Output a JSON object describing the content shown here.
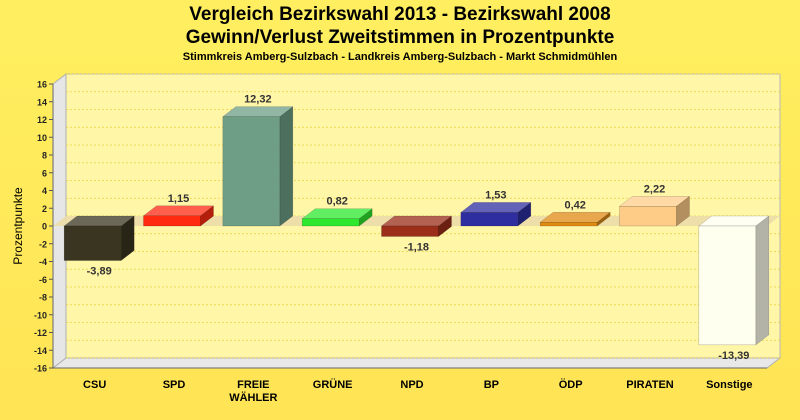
{
  "chart_data": {
    "type": "bar",
    "title": "Vergleich Bezirkswahl 2013 - Bezirkswahl 2008",
    "subtitle_line2": "Gewinn/Verlust Zweitstimmen in Prozentpunkte",
    "caption": "Stimmkreis Amberg-Sulzbach - Landkreis Amberg-Sulzbach - Markt Schmidmühlen",
    "ylabel": "Prozentpunkte",
    "xlabel": "",
    "ylim": [
      -16,
      16
    ],
    "ytick_step": 2,
    "grid": true,
    "categories": [
      "CSU",
      "SPD",
      "FREIE WÄHLER",
      "GRÜNE",
      "NPD",
      "BP",
      "ÖDP",
      "PIRATEN",
      "Sonstige"
    ],
    "category_lines": [
      [
        "CSU"
      ],
      [
        "SPD"
      ],
      [
        "FREIE",
        "WÄHLER"
      ],
      [
        "GRÜNE"
      ],
      [
        "NPD"
      ],
      [
        "BP"
      ],
      [
        "ÖDP"
      ],
      [
        "PIRATEN"
      ],
      [
        "Sonstige"
      ]
    ],
    "values": [
      -3.89,
      1.15,
      12.32,
      0.82,
      -1.18,
      1.53,
      0.42,
      2.22,
      -13.39
    ],
    "value_labels": [
      "-3,89",
      "1,15",
      "12,32",
      "0,82",
      "-1,18",
      "1,53",
      "0,42",
      "2,22",
      "-13,39"
    ],
    "colors": [
      "#3a3520",
      "#ff2a10",
      "#6e9e86",
      "#2ee82e",
      "#9a2e18",
      "#2e2ea0",
      "#e08a10",
      "#ffcc88",
      "#fffff0"
    ]
  }
}
